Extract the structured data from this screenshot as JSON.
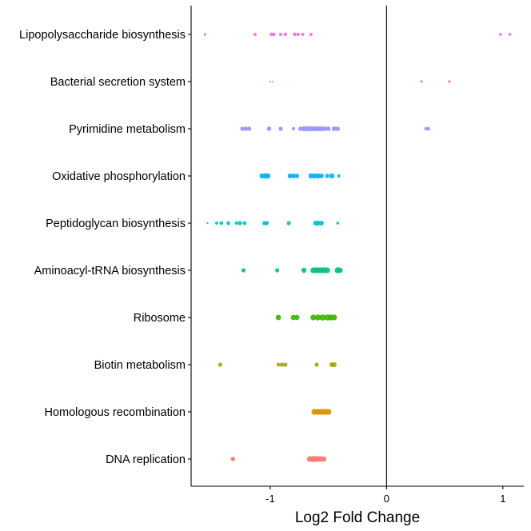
{
  "chart_data": {
    "type": "scatter",
    "title": "",
    "xlabel": "Log2 Fold Change",
    "ylabel": "",
    "xlim": [
      -1.68,
      1.18
    ],
    "x_ticks": [
      -1,
      0,
      1
    ],
    "x_tick_labels": [
      "-1",
      "0",
      "1"
    ],
    "zero_line": true,
    "grid": false,
    "legend": "none",
    "categories": [
      "Lipopolysaccharide biosynthesis",
      "Bacterial secretion system",
      "Pyrimidine metabolism",
      "Oxidative phosphorylation",
      "Peptidoglycan biosynthesis",
      "Aminoacyl-tRNA biosynthesis",
      "Ribosome",
      "Biotin metabolism",
      "Homologous recombination",
      "DNA replication"
    ],
    "series": [
      {
        "category": "Lipopolysaccharide biosynthesis",
        "color": "#F564E3",
        "points": [
          {
            "x": -1.56,
            "s": 1.6
          },
          {
            "x": -1.13,
            "s": 2.0
          },
          {
            "x": -0.99,
            "s": 2.2
          },
          {
            "x": -0.97,
            "s": 2.2
          },
          {
            "x": -0.91,
            "s": 2.0
          },
          {
            "x": -0.87,
            "s": 2.2
          },
          {
            "x": -0.79,
            "s": 2.2
          },
          {
            "x": -0.76,
            "s": 2.0
          },
          {
            "x": -0.72,
            "s": 2.0
          },
          {
            "x": -0.65,
            "s": 2.0
          },
          {
            "x": 0.98,
            "s": 1.8
          },
          {
            "x": 1.06,
            "s": 1.8
          }
        ]
      },
      {
        "category": "Bacterial secretion system",
        "color": "#E76BF3",
        "points": [
          {
            "x": -1.0,
            "s": 1.0
          },
          {
            "x": -0.98,
            "s": 1.0
          },
          {
            "x": 0.3,
            "s": 1.6
          },
          {
            "x": 0.54,
            "s": 1.6
          }
        ]
      },
      {
        "category": "Pyrimidine metabolism",
        "color": "#9590FF",
        "points": [
          {
            "x": -1.24,
            "s": 2.6
          },
          {
            "x": -1.21,
            "s": 2.8
          },
          {
            "x": -1.18,
            "s": 2.6
          },
          {
            "x": -1.01,
            "s": 2.8
          },
          {
            "x": -0.91,
            "s": 2.6
          },
          {
            "x": -0.8,
            "s": 2.2
          },
          {
            "x": -0.74,
            "s": 2.8
          },
          {
            "x": -0.71,
            "s": 3.2
          },
          {
            "x": -0.68,
            "s": 3.2
          },
          {
            "x": -0.65,
            "s": 3.2
          },
          {
            "x": -0.62,
            "s": 3.2
          },
          {
            "x": -0.59,
            "s": 3.2
          },
          {
            "x": -0.56,
            "s": 3.2
          },
          {
            "x": -0.53,
            "s": 3.0
          },
          {
            "x": -0.5,
            "s": 2.8
          },
          {
            "x": -0.45,
            "s": 3.0
          },
          {
            "x": -0.42,
            "s": 2.8
          },
          {
            "x": 0.34,
            "s": 2.2
          },
          {
            "x": 0.36,
            "s": 2.2
          }
        ]
      },
      {
        "category": "Oxidative phosphorylation",
        "color": "#00B0F6",
        "points": [
          {
            "x": -1.07,
            "s": 3.2
          },
          {
            "x": -1.04,
            "s": 3.4
          },
          {
            "x": -1.02,
            "s": 3.2
          },
          {
            "x": -0.83,
            "s": 3.0
          },
          {
            "x": -0.8,
            "s": 3.0
          },
          {
            "x": -0.77,
            "s": 2.8
          },
          {
            "x": -0.65,
            "s": 3.2
          },
          {
            "x": -0.62,
            "s": 3.2
          },
          {
            "x": -0.59,
            "s": 3.2
          },
          {
            "x": -0.56,
            "s": 3.0
          },
          {
            "x": -0.51,
            "s": 2.6
          },
          {
            "x": -0.47,
            "s": 3.2
          },
          {
            "x": -0.41,
            "s": 2.0
          }
        ]
      },
      {
        "category": "Peptidoglycan biosynthesis",
        "color": "#00BFC4",
        "points": [
          {
            "x": -1.54,
            "s": 1.2
          },
          {
            "x": -1.46,
            "s": 2.0
          },
          {
            "x": -1.42,
            "s": 2.4
          },
          {
            "x": -1.36,
            "s": 2.4
          },
          {
            "x": -1.29,
            "s": 2.2
          },
          {
            "x": -1.26,
            "s": 2.6
          },
          {
            "x": -1.22,
            "s": 2.4
          },
          {
            "x": -1.05,
            "s": 2.6
          },
          {
            "x": -1.03,
            "s": 2.6
          },
          {
            "x": -0.84,
            "s": 2.6
          },
          {
            "x": -0.61,
            "s": 3.0
          },
          {
            "x": -0.59,
            "s": 3.2
          },
          {
            "x": -0.56,
            "s": 3.0
          },
          {
            "x": -0.42,
            "s": 1.8
          }
        ]
      },
      {
        "category": "Aminoacyl-tRNA biosynthesis",
        "color": "#00BF7D",
        "points": [
          {
            "x": -1.23,
            "s": 2.6
          },
          {
            "x": -0.94,
            "s": 2.6
          },
          {
            "x": -0.71,
            "s": 3.2
          },
          {
            "x": -0.63,
            "s": 3.6
          },
          {
            "x": -0.6,
            "s": 3.8
          },
          {
            "x": -0.57,
            "s": 3.8
          },
          {
            "x": -0.54,
            "s": 3.8
          },
          {
            "x": -0.51,
            "s": 3.6
          },
          {
            "x": -0.42,
            "s": 3.8
          },
          {
            "x": -0.4,
            "s": 3.4
          }
        ]
      },
      {
        "category": "Ribosome",
        "color": "#39B600",
        "points": [
          {
            "x": -0.93,
            "s": 3.4
          },
          {
            "x": -0.8,
            "s": 3.4
          },
          {
            "x": -0.77,
            "s": 3.2
          },
          {
            "x": -0.63,
            "s": 3.6
          },
          {
            "x": -0.59,
            "s": 3.8
          },
          {
            "x": -0.55,
            "s": 3.8
          },
          {
            "x": -0.51,
            "s": 3.8
          },
          {
            "x": -0.48,
            "s": 3.8
          },
          {
            "x": -0.45,
            "s": 3.6
          }
        ]
      },
      {
        "category": "Biotin metabolism",
        "color": "#A3A500",
        "points": [
          {
            "x": -1.43,
            "s": 2.6
          },
          {
            "x": -0.93,
            "s": 2.4
          },
          {
            "x": -0.9,
            "s": 2.6
          },
          {
            "x": -0.87,
            "s": 2.6
          },
          {
            "x": -0.6,
            "s": 2.6
          },
          {
            "x": -0.47,
            "s": 3.0
          },
          {
            "x": -0.45,
            "s": 3.0
          }
        ]
      },
      {
        "category": "Homologous recombination",
        "color": "#D89000",
        "points": [
          {
            "x": -0.62,
            "s": 3.8
          },
          {
            "x": -0.59,
            "s": 3.8
          },
          {
            "x": -0.56,
            "s": 3.8
          },
          {
            "x": -0.53,
            "s": 3.8
          },
          {
            "x": -0.5,
            "s": 3.8
          }
        ]
      },
      {
        "category": "DNA replication",
        "color": "#F8766D",
        "points": [
          {
            "x": -1.32,
            "s": 2.8
          },
          {
            "x": -0.66,
            "s": 3.6
          },
          {
            "x": -0.63,
            "s": 3.8
          },
          {
            "x": -0.6,
            "s": 3.8
          },
          {
            "x": -0.57,
            "s": 3.6
          },
          {
            "x": -0.54,
            "s": 3.4
          }
        ]
      }
    ]
  }
}
